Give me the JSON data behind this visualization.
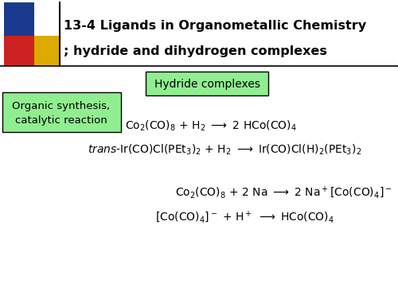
{
  "title_line1": "13-4 Ligands in Organometallic Chemistry",
  "title_line2": "; hydride and dihydrogen complexes",
  "bg_color": "#ffffff",
  "box1_text": "Hydride complexes",
  "box2_line1": "Organic synthesis,",
  "box2_line2": "catalytic reaction",
  "box_bg": "#90EE90",
  "title_fontsize": 11.5,
  "eq_fontsize": 10,
  "colors_blue": "#1a3a8f",
  "colors_red": "#cc2222",
  "colors_yellow": "#ddaa00"
}
